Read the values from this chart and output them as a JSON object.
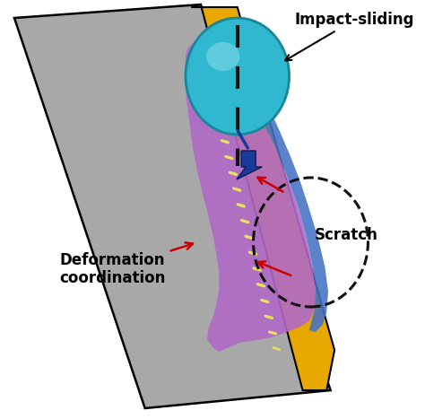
{
  "bg_color": "#ffffff",
  "gray_color": "#a8a8a8",
  "gold_color": "#e8a800",
  "purple_color": "#b06ac8",
  "blue_wear_color": "#4472c4",
  "teal_ball_color": "#30b8d0",
  "teal_ball_dark": "#1a8aaa",
  "dashed_line_color": "#e8e060",
  "arrow_color": "#cc0000",
  "blue_arrow_color": "#1a3a9a",
  "scratch_circle_color": "#111111",
  "impact_sliding_label": "Impact-sliding",
  "scratch_label": "Scratch",
  "deformation_label": "Deformation\ncoordination",
  "label_fontsize": 11,
  "bold_fontsize": 12
}
